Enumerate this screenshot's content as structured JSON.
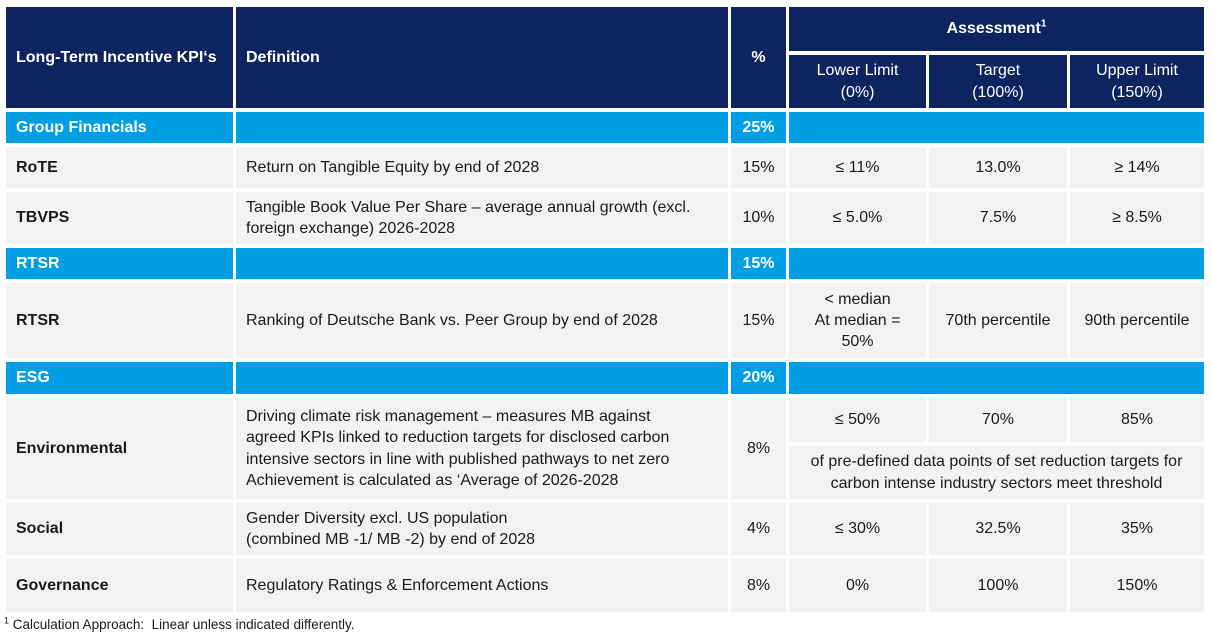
{
  "colors": {
    "navy": "#0D2460",
    "cyan": "#009FE3",
    "row_bg": "#F2F2F2",
    "text": "#1A1A1A"
  },
  "header": {
    "kpi_label": "Long-Term Incentive KPI‘s",
    "definition_label": "Definition",
    "percent_label": "%",
    "assessment_label": "Assessment",
    "assessment_footnote_ref": "1",
    "lower_limit_label": "Lower Limit\n(0%)",
    "target_label": "Target\n(100%)",
    "upper_limit_label": "Upper Limit\n(150%)"
  },
  "rows": [
    {
      "type": "section",
      "kpi": "Group Financials",
      "pct": "25%"
    },
    {
      "type": "data",
      "kpi": "RoTE",
      "def": "Return on Tangible Equity by end of 2028",
      "pct": "15%",
      "lower": "≤ 11%",
      "target": "13.0%",
      "upper": "≥ 14%"
    },
    {
      "type": "data",
      "kpi": "TBVPS",
      "def": "Tangible Book Value Per Share – average annual growth (excl.\nforeign exchange) 2026-2028",
      "pct": "10%",
      "lower": "≤ 5.0%",
      "target": "7.5%",
      "upper": "≥ 8.5%"
    },
    {
      "type": "section",
      "kpi": "RTSR",
      "pct": "15%"
    },
    {
      "type": "data",
      "kpi": "RTSR",
      "def": "Ranking of Deutsche Bank vs. Peer Group by end of 2028",
      "pct": "15%",
      "lower": "< median\nAt median =\n50%",
      "target": "70th percentile",
      "upper": "90th percentile"
    },
    {
      "type": "section",
      "kpi": "ESG",
      "pct": "20%"
    },
    {
      "type": "data-split",
      "kpi": "Environmental",
      "def": "Driving climate risk management – measures MB against\nagreed KPIs linked to reduction targets for disclosed carbon\nintensive sectors in line with published pathways to net zero\nAchievement is calculated as ‘Average of 2026-2028",
      "pct": "8%",
      "lower": "≤ 50%",
      "target": "70%",
      "upper": "85%",
      "note": "of pre-defined data points of set reduction targets for carbon intense industry sectors meet threshold"
    },
    {
      "type": "data",
      "kpi": "Social",
      "def": "Gender Diversity excl. US population\n(combined MB -1/ MB -2) by end of 2028",
      "pct": "4%",
      "lower": "≤ 30%",
      "target": "32.5%",
      "upper": "35%"
    },
    {
      "type": "data",
      "kpi": "Governance",
      "def": "Regulatory Ratings & Enforcement Actions",
      "pct": "8%",
      "lower": "0%",
      "target": "100%",
      "upper": "150%"
    }
  ],
  "footnote": {
    "ref": "1",
    "text": " Calculation Approach:  Linear unless indicated differently."
  }
}
